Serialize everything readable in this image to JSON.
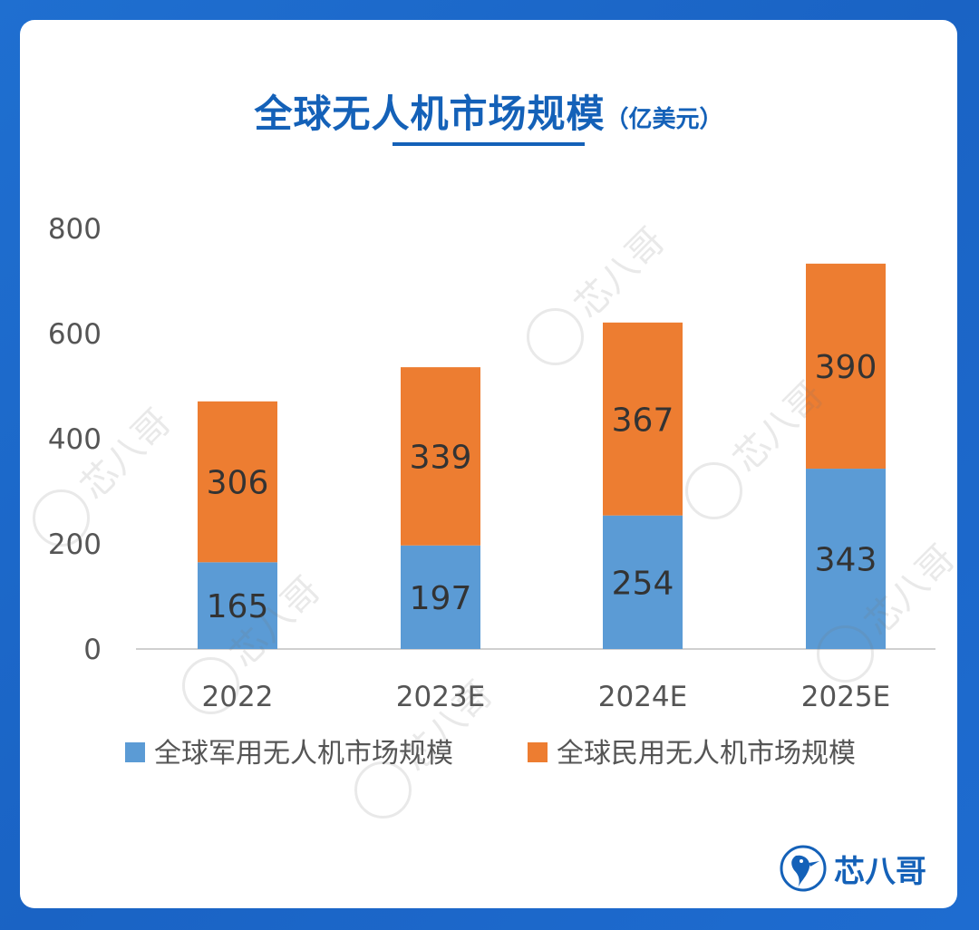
{
  "page": {
    "title": "全球无人机市场规模",
    "unit": "（亿美元）",
    "brand": "芯八哥",
    "watermark": "芯八哥"
  },
  "chart_data": {
    "type": "bar",
    "stacked": true,
    "categories": [
      "2022",
      "2023E",
      "2024E",
      "2025E"
    ],
    "series": [
      {
        "name": "全球军用无人机市场规模",
        "values": [
          165,
          197,
          254,
          343
        ],
        "color": "#5b9bd5"
      },
      {
        "name": "全球民用无人机市场规模",
        "values": [
          306,
          339,
          367,
          390
        ],
        "color": "#ed7d31"
      }
    ],
    "title": "全球无人机市场规模",
    "ylim": [
      0,
      800
    ],
    "yticks": [
      "0",
      "200",
      "400",
      "600",
      "800"
    ],
    "grid": false,
    "legend": "bottom"
  }
}
